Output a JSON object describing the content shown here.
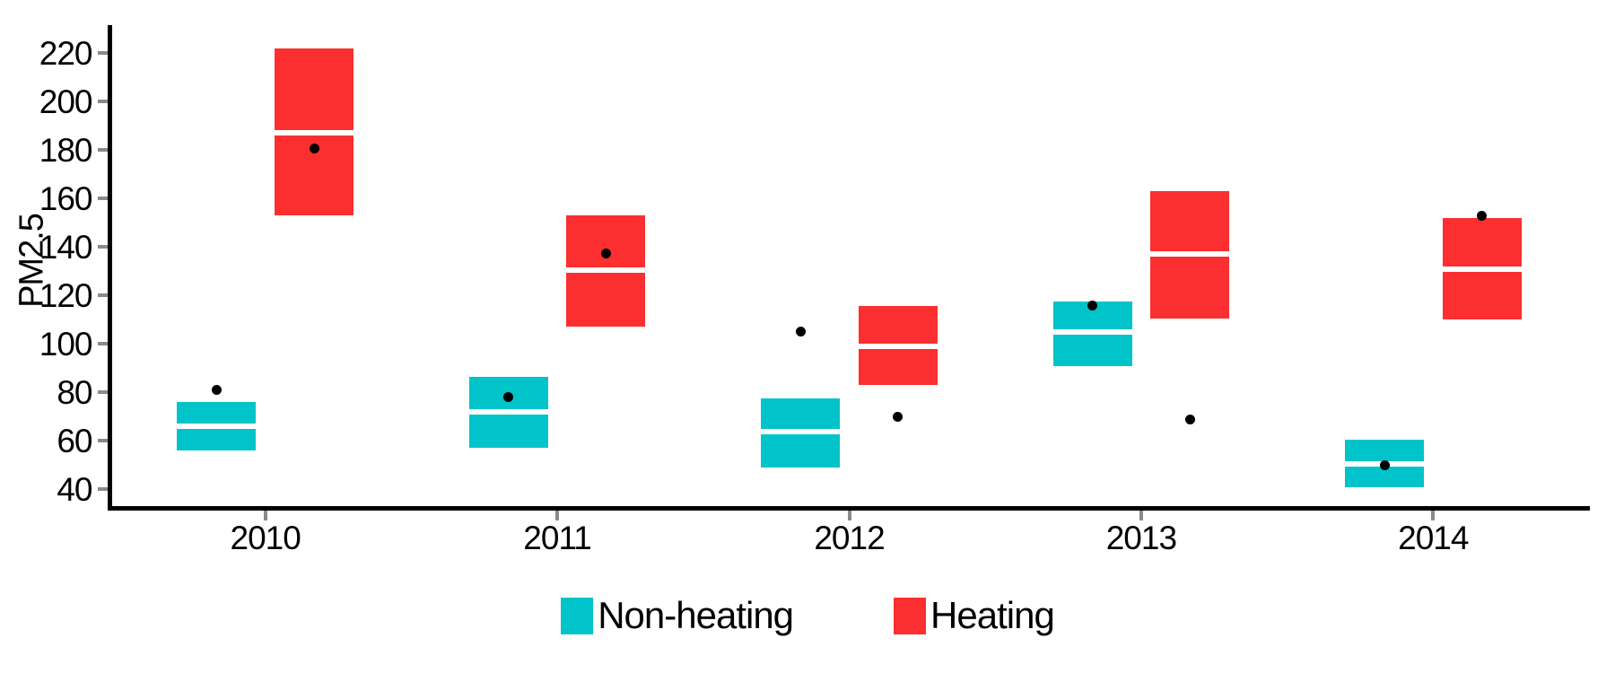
{
  "chart_data": {
    "type": "crossbar",
    "title": "",
    "ylabel": "PM2.5",
    "xlabel": "",
    "categories": [
      "2010",
      "2011",
      "2012",
      "2013",
      "2014"
    ],
    "y_ticks": [
      40,
      60,
      80,
      100,
      120,
      140,
      160,
      180,
      200,
      220
    ],
    "ylim": [
      32,
      231
    ],
    "grid": false,
    "legend_position": "bottom",
    "point_color": "#000000",
    "axis_color": "#000000",
    "tick_mark_color": "#8a8a8a",
    "series": [
      {
        "name": "Non-heating",
        "color": "#00C4C9",
        "boxes": [
          {
            "year": "2010",
            "lower": 56,
            "mid": 66,
            "upper": 76,
            "mean_point": 81
          },
          {
            "year": "2011",
            "lower": 57,
            "mid": 72,
            "upper": 86.5,
            "mean_point": 78
          },
          {
            "year": "2012",
            "lower": 49,
            "mid": 64,
            "upper": 77.5,
            "mean_point": 105
          },
          {
            "year": "2013",
            "lower": 91,
            "mid": 105,
            "upper": 117.5,
            "mean_point": 116
          },
          {
            "year": "2014",
            "lower": 41,
            "mid": 50.5,
            "upper": 60.5,
            "mean_point": 50
          }
        ]
      },
      {
        "name": "Heating",
        "color": "#FB2F2F",
        "boxes": [
          {
            "year": "2010",
            "lower": 153,
            "mid": 187,
            "upper": 222,
            "mean_point": 180.5
          },
          {
            "year": "2011",
            "lower": 107,
            "mid": 130.5,
            "upper": 153,
            "mean_point": 137.5
          },
          {
            "year": "2012",
            "lower": 83,
            "mid": 99,
            "upper": 115.5,
            "mean_point": 70
          },
          {
            "year": "2013",
            "lower": 110.5,
            "mid": 137,
            "upper": 163,
            "mean_point": 69
          },
          {
            "year": "2014",
            "lower": 110,
            "mid": 131,
            "upper": 152,
            "mean_point": 153
          }
        ]
      }
    ]
  }
}
